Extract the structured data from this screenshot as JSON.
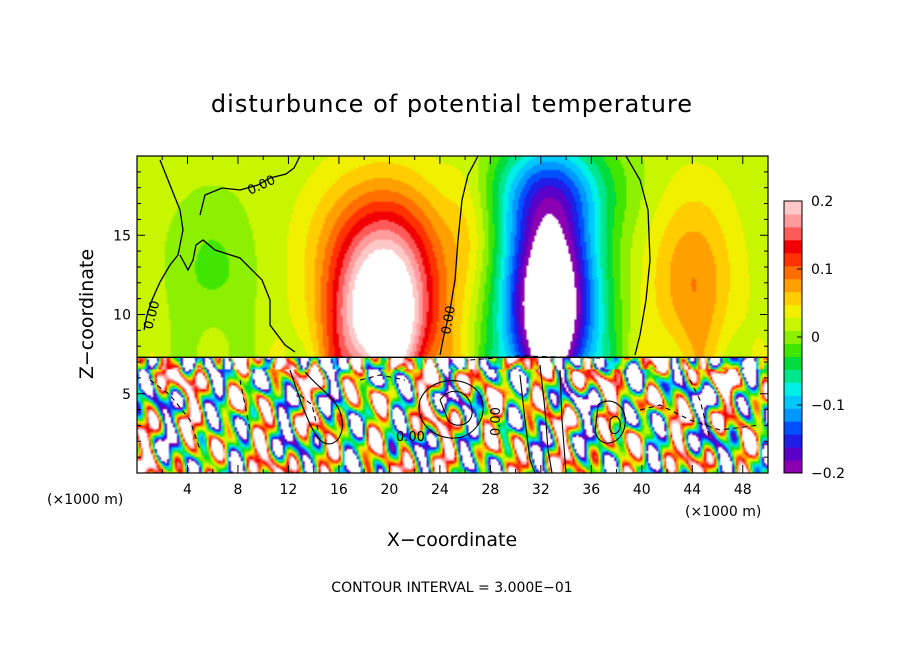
{
  "chart_data": {
    "type": "heatmap",
    "title": "disturbunce of potential temperature",
    "xlabel": "X−coordinate",
    "ylabel": "Z−coordinate",
    "x_unit": "(×1000 m)",
    "z_unit": "(×1000 m)",
    "xlim": [
      0,
      50
    ],
    "zlim": [
      0,
      20
    ],
    "x_ticks": [
      4,
      8,
      12,
      16,
      20,
      24,
      28,
      32,
      36,
      40,
      44,
      48
    ],
    "z_ticks": [
      5,
      10,
      15
    ],
    "colorbar": {
      "range": [
        -0.2,
        0.2
      ],
      "tick_values": [
        0.2,
        0.1,
        0,
        -0.1,
        -0.2
      ],
      "tick_labels": [
        "0.2",
        "0.1",
        "0",
        "−0.1",
        "−0.2"
      ],
      "colors": [
        "#8b00b0",
        "#5a00c8",
        "#1e1ee6",
        "#0050ff",
        "#0096ff",
        "#00c8ff",
        "#00f0e6",
        "#00e68c",
        "#00dc3c",
        "#40e600",
        "#8cf000",
        "#c8f500",
        "#f0f000",
        "#ffcd00",
        "#ffa000",
        "#ff6e00",
        "#ff3200",
        "#f00000",
        "#ff5a5a",
        "#ff9b9b",
        "#ffc8c8"
      ]
    },
    "contour_labels": [
      "0.00",
      "0.00",
      "0.00",
      "0.00",
      "0.00"
    ],
    "annotation": "CONTOUR INTERVAL = 3.000E−01",
    "layers": {
      "upper": {
        "z_range": [
          7.3,
          20
        ],
        "features": [
          {
            "kind": "warm",
            "x": 19.5,
            "z_base": 7.3,
            "peak": 0.2,
            "x_halfwidth": 5.5,
            "z_top": 18
          },
          {
            "kind": "cold",
            "x": 32.5,
            "z_base": 7.3,
            "peak": -0.25,
            "x_halfwidth": 5,
            "z_top": 19
          },
          {
            "kind": "warm-weak",
            "x": 44,
            "z_base": 7.3,
            "peak": 0.07,
            "x_halfwidth": 4,
            "z_top": 17
          }
        ]
      },
      "lower": {
        "z_range": [
          0,
          7.3
        ],
        "description": "turbulent mixed layer with alternating warm and cold anomalies"
      }
    }
  }
}
